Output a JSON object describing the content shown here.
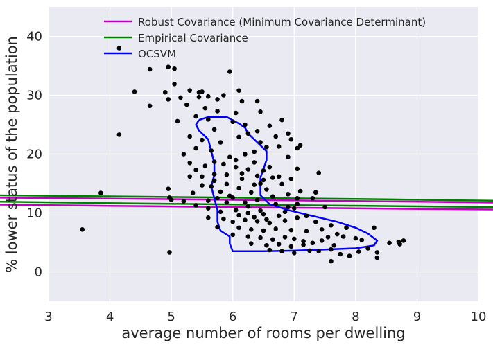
{
  "chart_data": {
    "type": "scatter",
    "title": "",
    "xlabel": "average number of rooms per dwelling",
    "ylabel": "% lower status of the population",
    "xlim": [
      3,
      10
    ],
    "ylim": [
      -5,
      45
    ],
    "xticks": [
      "3",
      "4",
      "5",
      "6",
      "7",
      "8",
      "9",
      "10"
    ],
    "yticks": [
      "0",
      "10",
      "20",
      "30",
      "40"
    ],
    "grid": true,
    "legend_position": "top-center",
    "background_color": "#eaeaf2",
    "point_color": "#000000",
    "points": [
      [
        4.15,
        38.0
      ],
      [
        4.65,
        34.4
      ],
      [
        4.95,
        34.8
      ],
      [
        5.05,
        34.5
      ],
      [
        5.95,
        34.0
      ],
      [
        4.4,
        30.6
      ],
      [
        4.9,
        30.5
      ],
      [
        5.05,
        31.9
      ],
      [
        5.3,
        30.8
      ],
      [
        5.45,
        30.5
      ],
      [
        5.5,
        30.6
      ],
      [
        5.85,
        30.0
      ],
      [
        4.95,
        29.3
      ],
      [
        5.15,
        29.6
      ],
      [
        5.45,
        29.7
      ],
      [
        5.6,
        29.8
      ],
      [
        5.75,
        29.3
      ],
      [
        6.1,
        30.8
      ],
      [
        6.15,
        29.0
      ],
      [
        6.4,
        29.0
      ],
      [
        4.65,
        28.2
      ],
      [
        5.25,
        28.4
      ],
      [
        5.55,
        27.8
      ],
      [
        5.75,
        27.3
      ],
      [
        6.05,
        27.0
      ],
      [
        6.45,
        27.2
      ],
      [
        6.8,
        25.8
      ],
      [
        5.1,
        25.6
      ],
      [
        5.4,
        26.4
      ],
      [
        5.6,
        25.9
      ],
      [
        6.0,
        25.5
      ],
      [
        6.2,
        25.0
      ],
      [
        6.6,
        24.8
      ],
      [
        6.9,
        23.5
      ],
      [
        5.3,
        23.0
      ],
      [
        5.7,
        24.2
      ],
      [
        6.25,
        23.5
      ],
      [
        6.4,
        23.9
      ],
      [
        6.7,
        23.0
      ],
      [
        6.95,
        22.5
      ],
      [
        7.05,
        21.0
      ],
      [
        4.15,
        23.3
      ],
      [
        5.5,
        22.4
      ],
      [
        6.45,
        22.0
      ],
      [
        6.75,
        21.3
      ],
      [
        6.9,
        19.5
      ],
      [
        7.05,
        17.5
      ],
      [
        7.1,
        21.5
      ],
      [
        5.2,
        20.0
      ],
      [
        5.3,
        18.5
      ],
      [
        5.4,
        17.3
      ],
      [
        5.5,
        16.2
      ],
      [
        5.7,
        15.5
      ],
      [
        5.9,
        14.9
      ],
      [
        5.9,
        16.5
      ],
      [
        5.7,
        18.7
      ],
      [
        5.95,
        19.5
      ],
      [
        6.2,
        20.0
      ],
      [
        6.05,
        17.8
      ],
      [
        6.35,
        18.6
      ],
      [
        6.5,
        17.2
      ],
      [
        6.5,
        15.6
      ],
      [
        5.8,
        13.6
      ],
      [
        6.1,
        14.2
      ],
      [
        6.3,
        13.5
      ],
      [
        6.55,
        14.0
      ],
      [
        6.8,
        14.9
      ],
      [
        6.9,
        13.2
      ],
      [
        7.05,
        12.5
      ],
      [
        5.6,
        12.1
      ],
      [
        5.9,
        11.8
      ],
      [
        6.0,
        12.6
      ],
      [
        6.2,
        11.8
      ],
      [
        6.4,
        12.2
      ],
      [
        6.7,
        11.5
      ],
      [
        6.9,
        11.0
      ],
      [
        5.35,
        13.4
      ],
      [
        5.6,
        10.8
      ],
      [
        5.8,
        10.2
      ],
      [
        6.05,
        10.5
      ],
      [
        6.25,
        10.0
      ],
      [
        6.5,
        9.8
      ],
      [
        6.75,
        9.5
      ],
      [
        5.5,
        14.7
      ],
      [
        5.7,
        16.6
      ],
      [
        6.15,
        15.8
      ],
      [
        6.4,
        16.3
      ],
      [
        6.6,
        17.8
      ],
      [
        6.75,
        16.2
      ],
      [
        6.95,
        15.8
      ],
      [
        5.85,
        9.0
      ],
      [
        6.0,
        8.5
      ],
      [
        6.2,
        8.8
      ],
      [
        6.4,
        8.6
      ],
      [
        6.6,
        8.3
      ],
      [
        6.85,
        8.7
      ],
      [
        7.05,
        9.2
      ],
      [
        5.75,
        7.6
      ],
      [
        6.1,
        7.5
      ],
      [
        6.3,
        7.2
      ],
      [
        6.5,
        7.0
      ],
      [
        6.7,
        7.3
      ],
      [
        6.95,
        7.1
      ],
      [
        7.2,
        6.9
      ],
      [
        6.0,
        6.3
      ],
      [
        6.25,
        6.0
      ],
      [
        6.45,
        5.8
      ],
      [
        6.65,
        5.5
      ],
      [
        6.85,
        5.9
      ],
      [
        7.0,
        5.6
      ],
      [
        7.15,
        5.2
      ],
      [
        6.3,
        4.8
      ],
      [
        6.55,
        4.5
      ],
      [
        6.75,
        4.7
      ],
      [
        6.95,
        4.3
      ],
      [
        7.15,
        4.6
      ],
      [
        7.3,
        4.9
      ],
      [
        7.45,
        5.3
      ],
      [
        6.6,
        3.7
      ],
      [
        6.8,
        3.5
      ],
      [
        7.0,
        3.2
      ],
      [
        7.25,
        3.6
      ],
      [
        7.35,
        8.5
      ],
      [
        7.45,
        7.2
      ],
      [
        7.6,
        7.9
      ],
      [
        7.1,
        13.7
      ],
      [
        7.3,
        12.5
      ],
      [
        7.35,
        13.5
      ],
      [
        7.4,
        16.8
      ],
      [
        7.5,
        11.0
      ],
      [
        7.05,
        11.5
      ],
      [
        7.2,
        9.5
      ],
      [
        7.55,
        5.9
      ],
      [
        7.7,
        6.4
      ],
      [
        7.85,
        7.5
      ],
      [
        7.8,
        6.0
      ],
      [
        8.0,
        5.7
      ],
      [
        8.1,
        5.4
      ],
      [
        8.3,
        7.5
      ],
      [
        7.6,
        3.8
      ],
      [
        7.75,
        3.0
      ],
      [
        7.9,
        2.7
      ],
      [
        8.05,
        3.4
      ],
      [
        8.2,
        4.0
      ],
      [
        8.35,
        3.3
      ],
      [
        7.6,
        1.8
      ],
      [
        8.35,
        2.4
      ],
      [
        8.7,
        5.1
      ],
      [
        8.72,
        4.7
      ],
      [
        8.78,
        5.3
      ],
      [
        7.4,
        3.5
      ],
      [
        7.65,
        4.5
      ],
      [
        8.55,
        4.9
      ],
      [
        4.95,
        14.1
      ],
      [
        4.97,
        12.6
      ],
      [
        5.0,
        12.2
      ],
      [
        5.2,
        12.0
      ],
      [
        4.97,
        3.3
      ],
      [
        3.55,
        7.2
      ],
      [
        3.85,
        13.4
      ],
      [
        5.4,
        11.3
      ],
      [
        5.6,
        9.2
      ],
      [
        5.4,
        21.0
      ],
      [
        5.55,
        18.0
      ],
      [
        5.3,
        16.2
      ],
      [
        5.65,
        14.5
      ],
      [
        5.8,
        22.0
      ],
      [
        6.1,
        22.9
      ],
      [
        6.35,
        20.4
      ],
      [
        6.55,
        21.2
      ],
      [
        6.15,
        16.7
      ],
      [
        6.35,
        14.8
      ],
      [
        5.95,
        12.9
      ],
      [
        6.25,
        11.1
      ],
      [
        6.45,
        10.4
      ],
      [
        6.65,
        12.8
      ],
      [
        6.85,
        10.2
      ],
      [
        7.0,
        10.8
      ],
      [
        6.1,
        9.6
      ],
      [
        6.35,
        9.3
      ],
      [
        6.55,
        8.9
      ],
      [
        5.65,
        20.6
      ],
      [
        5.85,
        18.3
      ],
      [
        6.05,
        19.0
      ],
      [
        6.25,
        17.4
      ],
      [
        6.45,
        15.0
      ],
      [
        6.65,
        16.0
      ],
      [
        5.75,
        12.5
      ]
    ],
    "legend": [
      {
        "label": "Robust Covariance (Minimum Covariance Determinant)",
        "color": "#bf00bf"
      },
      {
        "label": "Empirical Covariance",
        "color": "#008000"
      },
      {
        "label": "OCSVM",
        "color": "#0000ff"
      }
    ],
    "curves": [
      {
        "name": "robust",
        "color": "#bf00bf",
        "cx": 6.15,
        "cy": 11.6,
        "a": 13.7,
        "b": 0.62,
        "angle_deg": -84.0
      },
      {
        "name": "empirical",
        "color": "#008000",
        "cx": 6.2,
        "cy": 12.0,
        "a": 11.2,
        "b": 0.58,
        "angle_deg": -83.5
      },
      {
        "name": "ocsvm",
        "color": "#0000ff",
        "path": [
          [
            5.45,
            25.8
          ],
          [
            5.6,
            26.3
          ],
          [
            5.9,
            26.3
          ],
          [
            6.1,
            25.2
          ],
          [
            6.2,
            24.5
          ],
          [
            6.25,
            23.5
          ],
          [
            6.4,
            22.0
          ],
          [
            6.55,
            20.5
          ],
          [
            6.55,
            19.0
          ],
          [
            6.45,
            16.0
          ],
          [
            6.45,
            13.0
          ],
          [
            6.6,
            11.5
          ],
          [
            6.9,
            10.5
          ],
          [
            7.3,
            9.5
          ],
          [
            7.7,
            8.5
          ],
          [
            8.0,
            7.5
          ],
          [
            8.2,
            6.5
          ],
          [
            8.35,
            5.3
          ],
          [
            8.3,
            4.5
          ],
          [
            8.0,
            4.0
          ],
          [
            7.5,
            3.8
          ],
          [
            7.0,
            3.6
          ],
          [
            6.5,
            3.5
          ],
          [
            6.0,
            3.5
          ],
          [
            5.95,
            4.8
          ],
          [
            5.95,
            6.0
          ],
          [
            5.8,
            7.0
          ],
          [
            5.75,
            8.5
          ],
          [
            5.75,
            10.5
          ],
          [
            5.7,
            12.5
          ],
          [
            5.65,
            14.5
          ],
          [
            5.7,
            16.5
          ],
          [
            5.7,
            18.5
          ],
          [
            5.65,
            20.5
          ],
          [
            5.6,
            22.5
          ],
          [
            5.45,
            24.0
          ],
          [
            5.4,
            25.0
          ],
          [
            5.45,
            25.8
          ]
        ]
      }
    ]
  }
}
